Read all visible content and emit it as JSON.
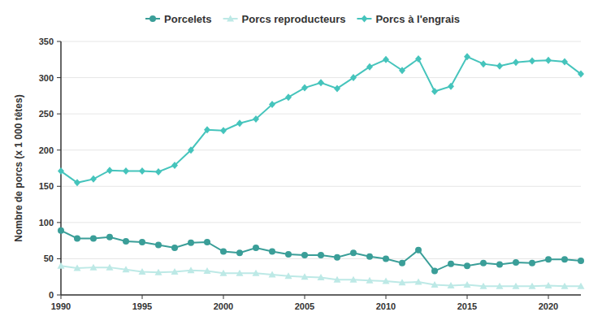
{
  "chart_data": {
    "type": "line",
    "y_label": "Nombre de porcs (x 1 000 têtes)",
    "x": [
      1990,
      1991,
      1992,
      1993,
      1994,
      1995,
      1996,
      1997,
      1998,
      1999,
      2000,
      2001,
      2002,
      2003,
      2004,
      2005,
      2006,
      2007,
      2008,
      2009,
      2010,
      2011,
      2012,
      2013,
      2014,
      2015,
      2016,
      2017,
      2018,
      2019,
      2020,
      2021,
      2022
    ],
    "series": [
      {
        "name": "Porcelets",
        "color": "#3a9e98",
        "marker": "circle",
        "values": [
          89,
          78,
          78,
          80,
          74,
          73,
          69,
          65,
          72,
          73,
          60,
          58,
          65,
          60,
          56,
          55,
          55,
          52,
          58,
          53,
          50,
          44,
          62,
          33,
          43,
          40,
          44,
          42,
          45,
          44,
          49,
          49,
          47
        ]
      },
      {
        "name": "Porcs reproducteurs",
        "color": "#bde9e6",
        "marker": "triangle",
        "values": [
          40,
          37,
          38,
          38,
          35,
          32,
          31,
          32,
          34,
          33,
          30,
          30,
          30,
          28,
          26,
          25,
          24,
          21,
          21,
          20,
          19,
          17,
          18,
          14,
          13,
          14,
          12,
          12,
          12,
          12,
          13,
          12,
          12
        ]
      },
      {
        "name": "Porcs à l'engrais",
        "color": "#45c4bc",
        "marker": "diamond",
        "values": [
          171,
          155,
          160,
          172,
          171,
          171,
          170,
          179,
          200,
          228,
          227,
          237,
          243,
          263,
          273,
          286,
          293,
          285,
          300,
          315,
          325,
          310,
          326,
          281,
          288,
          329,
          319,
          316,
          321,
          323,
          324,
          322,
          305
        ]
      }
    ],
    "xlim": [
      1990,
      2022
    ],
    "xticks": [
      1990,
      1995,
      2000,
      2005,
      2010,
      2015,
      2020
    ],
    "ylim": [
      0,
      350
    ],
    "yticks": [
      0,
      50,
      100,
      150,
      200,
      250,
      300,
      350
    ],
    "grid": true,
    "legend": "top"
  }
}
